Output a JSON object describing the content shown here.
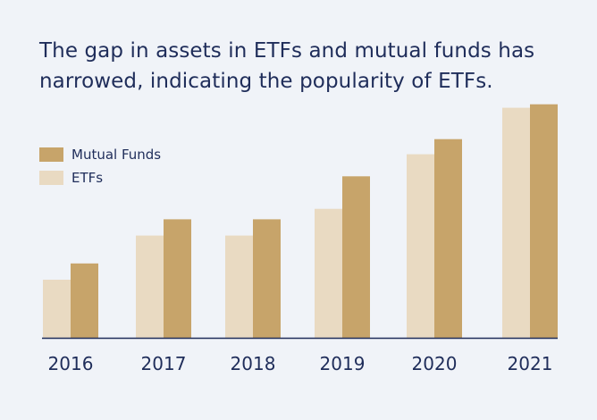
{
  "chart_data": {
    "type": "bar",
    "title": "The gap in assets in ETFs and mutual funds has narrowed, indicating the popularity of ETFs.",
    "categories": [
      "2016",
      "2017",
      "2018",
      "2019",
      "2020",
      "2021"
    ],
    "series": [
      {
        "name": "ETFs",
        "values": [
          5.0,
          8.8,
          8.8,
          11.1,
          15.8,
          19.8
        ],
        "color": "#e9dac2"
      },
      {
        "name": "Mutual Funds",
        "values": [
          6.4,
          10.2,
          10.2,
          13.9,
          17.1,
          20.1
        ],
        "color": "#c7a46a"
      }
    ],
    "ylim": [
      0,
      25
    ],
    "grid": false,
    "legend_position": "top-left",
    "xlabel": "",
    "ylabel": ""
  },
  "legend": [
    {
      "label": "Mutual Funds",
      "color": "#c7a46a"
    },
    {
      "label": "ETFs",
      "color": "#e9dac2"
    }
  ],
  "colors": {
    "axis": "#1f2d5a",
    "text": "#1f2d5a",
    "background": "#f0f3f8"
  }
}
